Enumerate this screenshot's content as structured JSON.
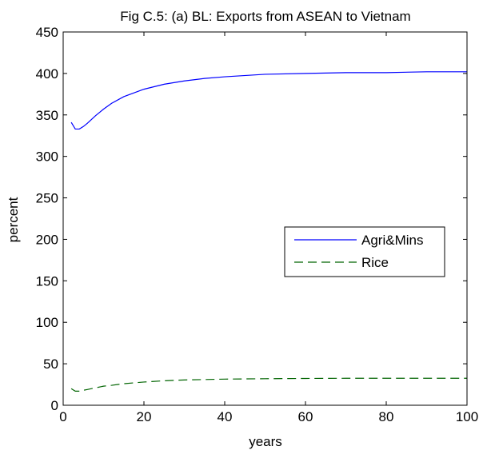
{
  "chart_data": {
    "type": "line",
    "title": "Fig C.5: (a) BL: Exports from ASEAN to Vietnam",
    "xlabel": "years",
    "ylabel": "percent",
    "xlim": [
      0,
      100
    ],
    "ylim": [
      0,
      450
    ],
    "x_ticks": [
      0,
      20,
      40,
      60,
      80,
      100
    ],
    "y_ticks": [
      0,
      50,
      100,
      150,
      200,
      250,
      300,
      350,
      400,
      450
    ],
    "grid": false,
    "legend_position": "center-right",
    "series": [
      {
        "name": "Agri&Mins",
        "color": "#0000ff",
        "line_style": "solid",
        "x": [
          2,
          3,
          4,
          5,
          6,
          8,
          10,
          12,
          15,
          20,
          25,
          30,
          35,
          40,
          50,
          60,
          70,
          80,
          90,
          100
        ],
        "y": [
          341,
          333,
          333,
          336,
          340,
          349,
          357,
          364,
          372,
          381,
          387,
          391,
          394,
          396,
          399,
          400,
          401,
          401,
          402,
          402
        ]
      },
      {
        "name": "Rice",
        "color": "#006400",
        "line_style": "dashed",
        "x": [
          2,
          3,
          4,
          5,
          6,
          8,
          10,
          12,
          15,
          20,
          25,
          30,
          35,
          40,
          50,
          60,
          70,
          80,
          90,
          100
        ],
        "y": [
          20,
          17,
          17,
          18,
          19,
          21,
          23,
          24,
          26,
          28,
          29.5,
          30.5,
          31,
          31.5,
          32,
          32.3,
          32.5,
          32.5,
          32.5,
          32.5
        ]
      }
    ]
  }
}
